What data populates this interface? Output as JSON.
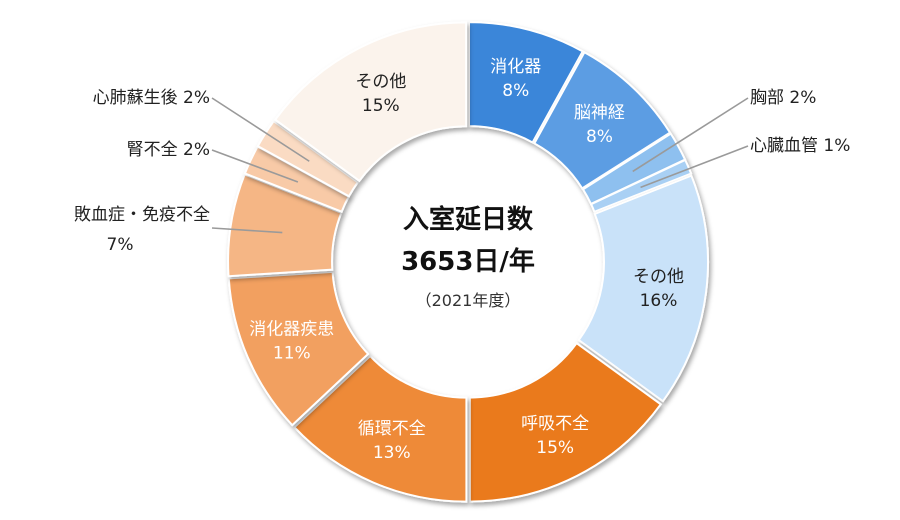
{
  "chart_data": {
    "type": "pie",
    "variant": "donut",
    "title_line1": "入室延日数",
    "title_line2": "3653日/年",
    "title_line3": "（2021年度）",
    "slices": [
      {
        "label": "消化器",
        "value": 8,
        "pct_text": "8%",
        "color": "#3a86d9",
        "text_color": "#ffffff",
        "label_place": "inside"
      },
      {
        "label": "脳神経",
        "value": 8,
        "pct_text": "8%",
        "color": "#5c9de3",
        "text_color": "#ffffff",
        "label_place": "inside"
      },
      {
        "label": "胸部",
        "value": 2,
        "pct_text": "2%",
        "color": "#8ec0ef",
        "text_color": "#222222",
        "label_place": "outside"
      },
      {
        "label": "心臓血管",
        "value": 1,
        "pct_text": "1%",
        "color": "#a9d0f4",
        "text_color": "#222222",
        "label_place": "outside"
      },
      {
        "label": "その他",
        "value": 16,
        "pct_text": "16%",
        "color": "#c9e2f9",
        "text_color": "#222222",
        "label_place": "inside"
      },
      {
        "label": "呼吸不全",
        "value": 15,
        "pct_text": "15%",
        "color": "#ea7a1c",
        "text_color": "#ffffff",
        "label_place": "inside"
      },
      {
        "label": "循環不全",
        "value": 13,
        "pct_text": "13%",
        "color": "#ee8a38",
        "text_color": "#ffffff",
        "label_place": "inside"
      },
      {
        "label": "消化器疾患",
        "value": 11,
        "pct_text": "11%",
        "color": "#f2a060",
        "text_color": "#ffffff",
        "label_place": "inside"
      },
      {
        "label": "敗血症・免疫不全",
        "value": 7,
        "pct_text": "7%",
        "color": "#f5b685",
        "text_color": "#222222",
        "label_place": "outside"
      },
      {
        "label": "腎不全",
        "value": 2,
        "pct_text": "2%",
        "color": "#f8caa7",
        "text_color": "#222222",
        "label_place": "outside"
      },
      {
        "label": "心肺蘇生後",
        "value": 2,
        "pct_text": "2%",
        "color": "#fadbc3",
        "text_color": "#222222",
        "label_place": "outside"
      },
      {
        "label": "その他",
        "value": 15,
        "pct_text": "15%",
        "color": "#fbf3ec",
        "text_color": "#222222",
        "label_place": "inside"
      }
    ]
  }
}
